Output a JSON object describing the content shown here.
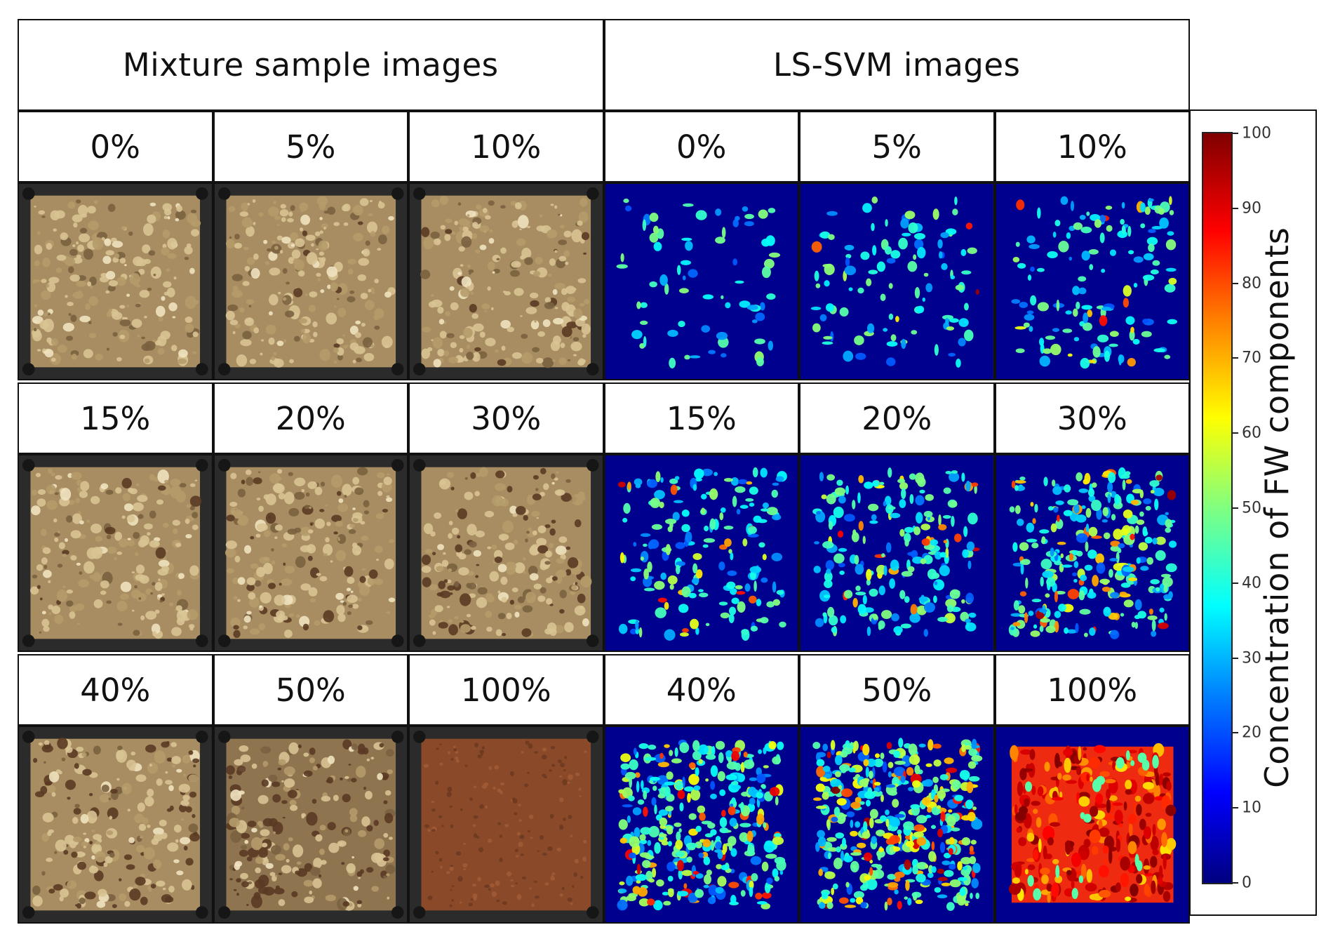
{
  "headers": {
    "mixture": "Mixture sample images",
    "lssvm": "LS-SVM images"
  },
  "rows": [
    {
      "labels": [
        "0%",
        "5%",
        "10%",
        "0%",
        "5%",
        "10%"
      ],
      "mixture_fw_fraction": [
        0.0,
        0.05,
        0.1
      ],
      "lssvm_fw_fraction": [
        0.0,
        0.05,
        0.1
      ]
    },
    {
      "labels": [
        "15%",
        "20%",
        "30%",
        "15%",
        "20%",
        "30%"
      ],
      "mixture_fw_fraction": [
        0.15,
        0.2,
        0.3
      ],
      "lssvm_fw_fraction": [
        0.15,
        0.2,
        0.3
      ]
    },
    {
      "labels": [
        "40%",
        "50%",
        "100%",
        "40%",
        "50%",
        "100%"
      ],
      "mixture_fw_fraction": [
        0.4,
        0.5,
        1.0
      ],
      "lssvm_fw_fraction": [
        0.4,
        0.5,
        1.0
      ]
    }
  ],
  "colorbar": {
    "title": "Concentration of FW components",
    "min": 0,
    "max": 100,
    "ticks": [
      "0",
      "10",
      "20",
      "30",
      "40",
      "50",
      "60",
      "70",
      "80",
      "90",
      "100"
    ],
    "colormap": "jet",
    "colors": [
      "#000080",
      "#0000ff",
      "#00ffff",
      "#ffff00",
      "#ff0000",
      "#800000"
    ]
  },
  "colors": {
    "tray": "#2b2b2b",
    "soil_light": "#d8c394",
    "soil_dark": "#7a6240",
    "fw_brown": "#8a4a2a",
    "heat_background": "#00008f"
  }
}
